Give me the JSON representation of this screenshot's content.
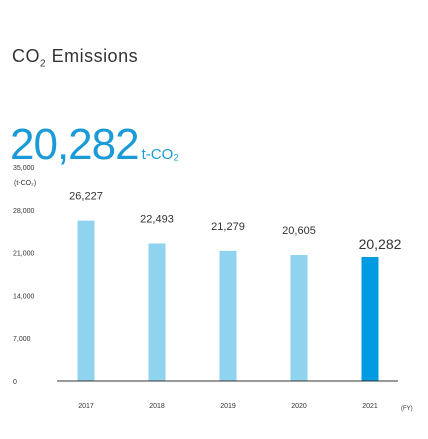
{
  "title": {
    "main": "CO",
    "sub": "2",
    "rest": " Emissions"
  },
  "headline": {
    "value": "20,282",
    "unit": "t-CO₂"
  },
  "colors": {
    "bar": "#8fd3ee",
    "highlight": "#009be0",
    "accent": "#1a9bd7",
    "axis": "#333333"
  },
  "chart_data": {
    "type": "bar",
    "categories": [
      "2017",
      "2018",
      "2019",
      "2020",
      "2021"
    ],
    "values": [
      26227,
      22493,
      21279,
      20605,
      20282
    ],
    "value_labels": [
      "26,227",
      "22,493",
      "21,279",
      "20,605",
      "20,282"
    ],
    "highlight_index": 4,
    "ylabel": "(t-CO₂)",
    "xlabel": "(FY)",
    "yticks": [
      0,
      7000,
      14000,
      21000,
      28000,
      35000
    ],
    "ytick_labels": [
      "0",
      "7,000",
      "14,000",
      "21,000",
      "28,000",
      "35,000"
    ],
    "ylim": [
      0,
      35000
    ],
    "grid": false
  }
}
